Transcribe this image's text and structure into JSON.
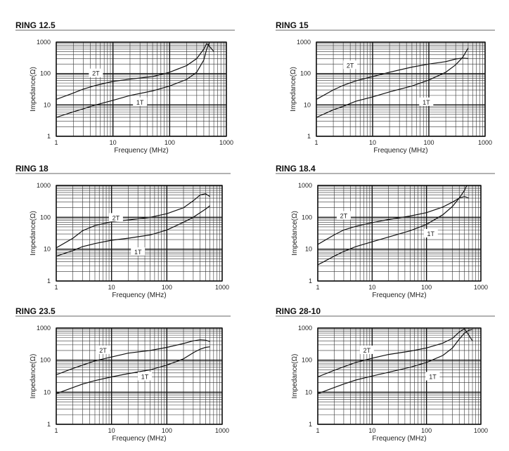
{
  "figure": {
    "x_label": "Frequency (MHz)",
    "y_label": "Impedance(Ω)"
  },
  "chart_data": [
    {
      "type": "line",
      "title": "RING 12.5",
      "xlabel": "Frequency (MHz)",
      "ylabel": "Impedance(Ω)",
      "xscale": "log",
      "yscale": "log",
      "xlim": [
        1,
        1000
      ],
      "ylim": [
        1,
        1000
      ],
      "x_ticks": [
        "1",
        "10",
        "100",
        "1000"
      ],
      "y_ticks": [
        "1",
        "10",
        "100",
        "1000"
      ],
      "grid": true,
      "series": [
        {
          "name": "2T",
          "label_at": [
            5,
            100
          ],
          "points": [
            [
              1,
              15
            ],
            [
              2,
              24
            ],
            [
              3,
              32
            ],
            [
              5,
              42
            ],
            [
              10,
              56
            ],
            [
              20,
              66
            ],
            [
              50,
              80
            ],
            [
              100,
              110
            ],
            [
              200,
              180
            ],
            [
              300,
              300
            ],
            [
              400,
              600
            ],
            [
              450,
              900
            ],
            [
              500,
              750
            ],
            [
              600,
              500
            ]
          ]
        },
        {
          "name": "1T",
          "label_at": [
            30,
            12
          ],
          "points": [
            [
              1,
              4
            ],
            [
              2,
              6
            ],
            [
              3,
              7.5
            ],
            [
              5,
              10
            ],
            [
              10,
              14
            ],
            [
              20,
              20
            ],
            [
              50,
              28
            ],
            [
              100,
              40
            ],
            [
              200,
              65
            ],
            [
              300,
              110
            ],
            [
              400,
              270
            ],
            [
              450,
              600
            ],
            [
              500,
              950
            ]
          ]
        }
      ]
    },
    {
      "type": "line",
      "title": "RING 15",
      "xlabel": "Frequency (MHz)",
      "ylabel": "Impedance(Ω)",
      "xscale": "log",
      "yscale": "log",
      "xlim": [
        1,
        1000
      ],
      "ylim": [
        1,
        1000
      ],
      "x_ticks": [
        "1",
        "10",
        "100",
        "1000"
      ],
      "y_ticks": [
        "1",
        "10",
        "100",
        "1000"
      ],
      "grid": true,
      "series": [
        {
          "name": "2T",
          "label_at": [
            4,
            180
          ],
          "points": [
            [
              1,
              15
            ],
            [
              2,
              30
            ],
            [
              3,
              42
            ],
            [
              5,
              58
            ],
            [
              10,
              80
            ],
            [
              20,
              110
            ],
            [
              50,
              160
            ],
            [
              100,
              200
            ],
            [
              200,
              240
            ],
            [
              300,
              290
            ],
            [
              400,
              310
            ],
            [
              500,
              300
            ]
          ]
        },
        {
          "name": "1T",
          "label_at": [
            90,
            12
          ],
          "points": [
            [
              1,
              4
            ],
            [
              2,
              7
            ],
            [
              3,
              9
            ],
            [
              5,
              13
            ],
            [
              10,
              18
            ],
            [
              20,
              26
            ],
            [
              50,
              40
            ],
            [
              100,
              62
            ],
            [
              200,
              110
            ],
            [
              300,
              190
            ],
            [
              400,
              330
            ],
            [
              500,
              650
            ]
          ]
        }
      ]
    },
    {
      "type": "line",
      "title": "RING 18",
      "xlabel": "Frequency (MHz)",
      "ylabel": "Impedance(Ω)",
      "xscale": "log",
      "yscale": "log",
      "xlim": [
        1,
        1000
      ],
      "ylim": [
        1,
        1000
      ],
      "x_ticks": [
        "1",
        "10",
        "100",
        "1000"
      ],
      "y_ticks": [
        "1",
        "10",
        "100",
        "1000"
      ],
      "grid": true,
      "series": [
        {
          "name": "2T",
          "label_at": [
            12,
            95
          ],
          "points": [
            [
              1,
              11
            ],
            [
              2,
              22
            ],
            [
              3,
              38
            ],
            [
              5,
              55
            ],
            [
              10,
              72
            ],
            [
              20,
              82
            ],
            [
              50,
              100
            ],
            [
              100,
              130
            ],
            [
              200,
              200
            ],
            [
              300,
              330
            ],
            [
              400,
              500
            ],
            [
              500,
              550
            ],
            [
              600,
              450
            ]
          ]
        },
        {
          "name": "1T",
          "label_at": [
            30,
            8
          ],
          "points": [
            [
              1,
              6
            ],
            [
              2,
              9
            ],
            [
              3,
              12
            ],
            [
              5,
              15
            ],
            [
              10,
              19
            ],
            [
              20,
              22
            ],
            [
              50,
              28
            ],
            [
              100,
              40
            ],
            [
              200,
              70
            ],
            [
              300,
              100
            ],
            [
              400,
              140
            ],
            [
              500,
              180
            ],
            [
              600,
              230
            ]
          ]
        }
      ]
    },
    {
      "type": "line",
      "title": "RING 18.4",
      "xlabel": "Frequency (MHz)",
      "ylabel": "Impedance(Ω)",
      "xscale": "log",
      "yscale": "log",
      "xlim": [
        1,
        1000
      ],
      "ylim": [
        1,
        1000
      ],
      "x_ticks": [
        "1",
        "10",
        "100",
        "1000"
      ],
      "y_ticks": [
        "1",
        "10",
        "100",
        "1000"
      ],
      "grid": true,
      "series": [
        {
          "name": "2T",
          "label_at": [
            3,
            110
          ],
          "points": [
            [
              1,
              14
            ],
            [
              2,
              28
            ],
            [
              3,
              40
            ],
            [
              5,
              52
            ],
            [
              10,
              68
            ],
            [
              20,
              85
            ],
            [
              50,
              110
            ],
            [
              100,
              140
            ],
            [
              200,
              210
            ],
            [
              300,
              300
            ],
            [
              400,
              400
            ],
            [
              500,
              450
            ],
            [
              600,
              400
            ]
          ]
        },
        {
          "name": "1T",
          "label_at": [
            120,
            30
          ],
          "points": [
            [
              1,
              3.2
            ],
            [
              2,
              6
            ],
            [
              3,
              8.5
            ],
            [
              5,
              12
            ],
            [
              10,
              17
            ],
            [
              20,
              24
            ],
            [
              50,
              38
            ],
            [
              100,
              60
            ],
            [
              200,
              120
            ],
            [
              300,
              220
            ],
            [
              400,
              400
            ],
            [
              500,
              700
            ],
            [
              550,
              1000
            ]
          ]
        }
      ]
    },
    {
      "type": "line",
      "title": "RING 23.5",
      "xlabel": "Frequency (MHz)",
      "ylabel": "Impedance(Ω)",
      "xscale": "log",
      "yscale": "log",
      "xlim": [
        1,
        1000
      ],
      "ylim": [
        1,
        1000
      ],
      "x_ticks": [
        "1",
        "10",
        "100",
        "1000"
      ],
      "y_ticks": [
        "1",
        "10",
        "100",
        "1000"
      ],
      "grid": true,
      "series": [
        {
          "name": "2T",
          "label_at": [
            7,
            200
          ],
          "points": [
            [
              1,
              35
            ],
            [
              2,
              55
            ],
            [
              3,
              70
            ],
            [
              5,
              95
            ],
            [
              10,
              125
            ],
            [
              20,
              165
            ],
            [
              50,
              200
            ],
            [
              100,
              250
            ],
            [
              200,
              330
            ],
            [
              300,
              400
            ],
            [
              400,
              430
            ],
            [
              500,
              420
            ],
            [
              600,
              380
            ]
          ]
        },
        {
          "name": "1T",
          "label_at": [
            40,
            30
          ],
          "points": [
            [
              1,
              9
            ],
            [
              2,
              14
            ],
            [
              3,
              18
            ],
            [
              5,
              23
            ],
            [
              10,
              30
            ],
            [
              20,
              38
            ],
            [
              50,
              50
            ],
            [
              100,
              70
            ],
            [
              200,
              110
            ],
            [
              300,
              170
            ],
            [
              400,
              220
            ],
            [
              500,
              250
            ],
            [
              600,
              260
            ]
          ]
        }
      ]
    },
    {
      "type": "line",
      "title": "RING 28-10",
      "xlabel": "Frequency (MHz)",
      "ylabel": "Impedance(Ω)",
      "xscale": "log",
      "yscale": "log",
      "xlim": [
        1,
        1000
      ],
      "ylim": [
        1,
        1000
      ],
      "x_ticks": [
        "1",
        "10",
        "100",
        "1000"
      ],
      "y_ticks": [
        "1",
        "10",
        "100",
        "1000"
      ],
      "grid": true,
      "series": [
        {
          "name": "2T",
          "label_at": [
            8,
            200
          ],
          "points": [
            [
              1,
              30
            ],
            [
              2,
              48
            ],
            [
              3,
              62
            ],
            [
              5,
              85
            ],
            [
              10,
              115
            ],
            [
              20,
              150
            ],
            [
              50,
              190
            ],
            [
              100,
              240
            ],
            [
              200,
              340
            ],
            [
              300,
              480
            ],
            [
              400,
              750
            ],
            [
              500,
              950
            ],
            [
              600,
              600
            ],
            [
              700,
              400
            ]
          ]
        },
        {
          "name": "1T",
          "label_at": [
            130,
            30
          ],
          "points": [
            [
              1,
              9
            ],
            [
              2,
              14
            ],
            [
              3,
              18
            ],
            [
              5,
              24
            ],
            [
              10,
              32
            ],
            [
              20,
              42
            ],
            [
              50,
              60
            ],
            [
              100,
              85
            ],
            [
              200,
              140
            ],
            [
              300,
              240
            ],
            [
              400,
              450
            ],
            [
              500,
              700
            ],
            [
              600,
              850
            ],
            [
              700,
              900
            ]
          ]
        }
      ]
    }
  ]
}
